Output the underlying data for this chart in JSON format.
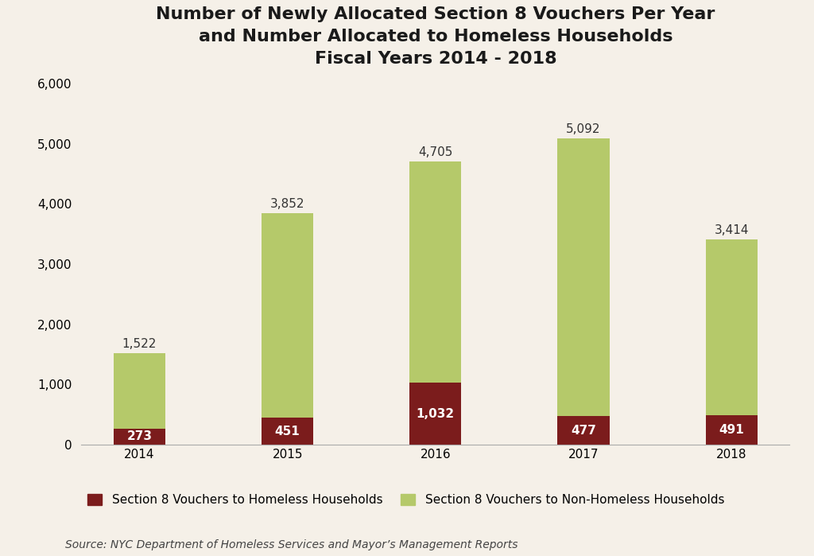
{
  "years": [
    "2014",
    "2015",
    "2016",
    "2017",
    "2018"
  ],
  "homeless": [
    273,
    451,
    1032,
    477,
    491
  ],
  "non_homeless": [
    1249,
    3401,
    3673,
    4615,
    2923
  ],
  "totals": [
    1522,
    3852,
    4705,
    5092,
    3414
  ],
  "homeless_color": "#7b1c1c",
  "non_homeless_color": "#b5c96a",
  "background_color": "#f5f0e8",
  "title_line1": "Number of Newly Allocated Section 8 Vouchers Per Year",
  "title_line2": "and Number Allocated to Homeless Households",
  "title_line3": "Fiscal Years 2014 - 2018",
  "legend_homeless": "Section 8 Vouchers to Homeless Households",
  "legend_non_homeless": "Section 8 Vouchers to Non-Homeless Households",
  "source": "Source: NYC Department of Homeless Services and Mayor’s Management Reports",
  "ylim": [
    0,
    6000
  ],
  "yticks": [
    0,
    1000,
    2000,
    3000,
    4000,
    5000,
    6000
  ],
  "title_fontsize": 16,
  "label_fontsize": 11,
  "tick_fontsize": 11,
  "source_fontsize": 10,
  "legend_fontsize": 11,
  "bar_width": 0.35
}
